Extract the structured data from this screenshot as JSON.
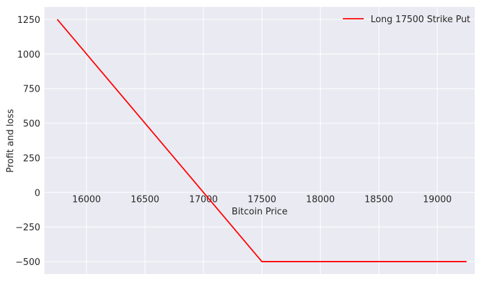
{
  "chart_data": {
    "type": "line",
    "title": "",
    "xlabel": "Bitcoin Price",
    "ylabel": "Profit and loss",
    "xlim": [
      15640,
      19320
    ],
    "ylim": [
      -590,
      1340
    ],
    "xticks": [
      16000,
      16500,
      17000,
      17500,
      18000,
      18500,
      19000
    ],
    "yticks": [
      -500,
      -250,
      0,
      250,
      500,
      750,
      1000,
      1250
    ],
    "xtick_labels": [
      "16000",
      "16500",
      "17000",
      "17500",
      "18000",
      "18500",
      "19000"
    ],
    "ytick_labels": [
      "−500",
      "−250",
      "0",
      "250",
      "500",
      "750",
      "1000",
      "1250"
    ],
    "grid": true,
    "legend_placement": "top-right",
    "series": [
      {
        "name": "Long 17500 Strike Put",
        "color": "#ff0000",
        "x": [
          15750,
          17500,
          19250
        ],
        "y": [
          1250,
          -500,
          -500
        ]
      }
    ]
  }
}
